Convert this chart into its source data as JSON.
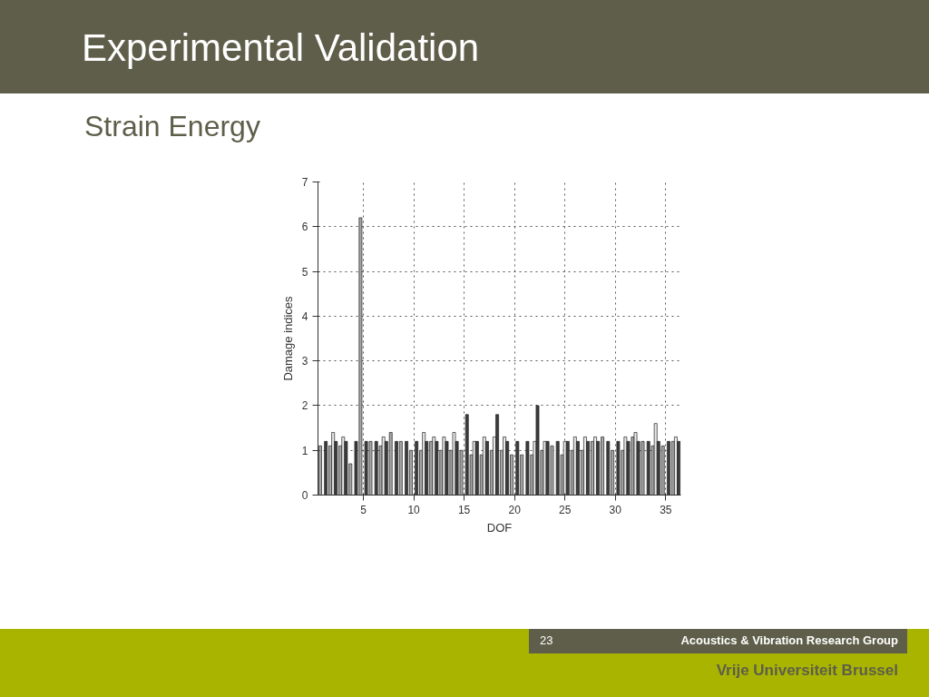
{
  "chart_data": {
    "type": "bar",
    "title": "Experimental Validation",
    "subtitle": "Strain Energy",
    "xlabel": "DOF",
    "ylabel": "Damage indices",
    "x": [
      1,
      2,
      3,
      4,
      5,
      6,
      7,
      8,
      9,
      10,
      11,
      12,
      13,
      14,
      15,
      16,
      17,
      18,
      19,
      20,
      21,
      22,
      23,
      24,
      25,
      26,
      27,
      28,
      29,
      30,
      31,
      32,
      33,
      34,
      35,
      36
    ],
    "series": [
      {
        "color": "#a6a6a6",
        "values": [
          1.1,
          1.1,
          1.1,
          0.7,
          6.2,
          1.2,
          1.1,
          1.4,
          1.2,
          1.0,
          1.0,
          1.2,
          1.0,
          1.0,
          1.0,
          0.9,
          0.9,
          1.0,
          1.0,
          0.9,
          0.9,
          0.9,
          1.0,
          1.1,
          0.9,
          1.0,
          1.0,
          1.2,
          1.3,
          1.0,
          1.0,
          1.3,
          1.2,
          1.1,
          1.1,
          1.2
        ]
      },
      {
        "color": "#e8e8e8",
        "values": [
          null,
          1.4,
          1.3,
          null,
          null,
          null,
          1.3,
          null,
          null,
          null,
          1.4,
          1.3,
          1.3,
          1.4,
          null,
          1.2,
          1.3,
          1.3,
          1.3,
          null,
          null,
          1.2,
          1.2,
          null,
          1.2,
          1.3,
          1.3,
          1.3,
          null,
          null,
          1.3,
          1.4,
          null,
          1.6,
          null,
          1.3
        ]
      },
      {
        "color": "#3c3c3c",
        "values": [
          1.2,
          1.2,
          1.2,
          1.2,
          1.2,
          1.2,
          1.2,
          1.2,
          1.2,
          1.2,
          1.2,
          1.2,
          1.2,
          1.2,
          1.8,
          1.2,
          1.2,
          1.8,
          1.2,
          1.2,
          1.2,
          2.0,
          1.2,
          1.2,
          1.2,
          1.2,
          1.2,
          1.2,
          1.2,
          1.2,
          1.2,
          1.2,
          1.2,
          1.2,
          1.2,
          1.2
        ]
      }
    ],
    "xlim": [
      0.5,
      36.5
    ],
    "xticks": [
      5,
      10,
      15,
      20,
      25,
      30,
      35
    ],
    "ylim": [
      0,
      7
    ],
    "yticks": [
      0,
      1,
      2,
      3,
      4,
      5,
      6,
      7
    ],
    "grid": true,
    "annotations": [
      "23",
      "Acoustics & Vibration Research Group",
      "Vrije Universiteit Brussel"
    ]
  }
}
